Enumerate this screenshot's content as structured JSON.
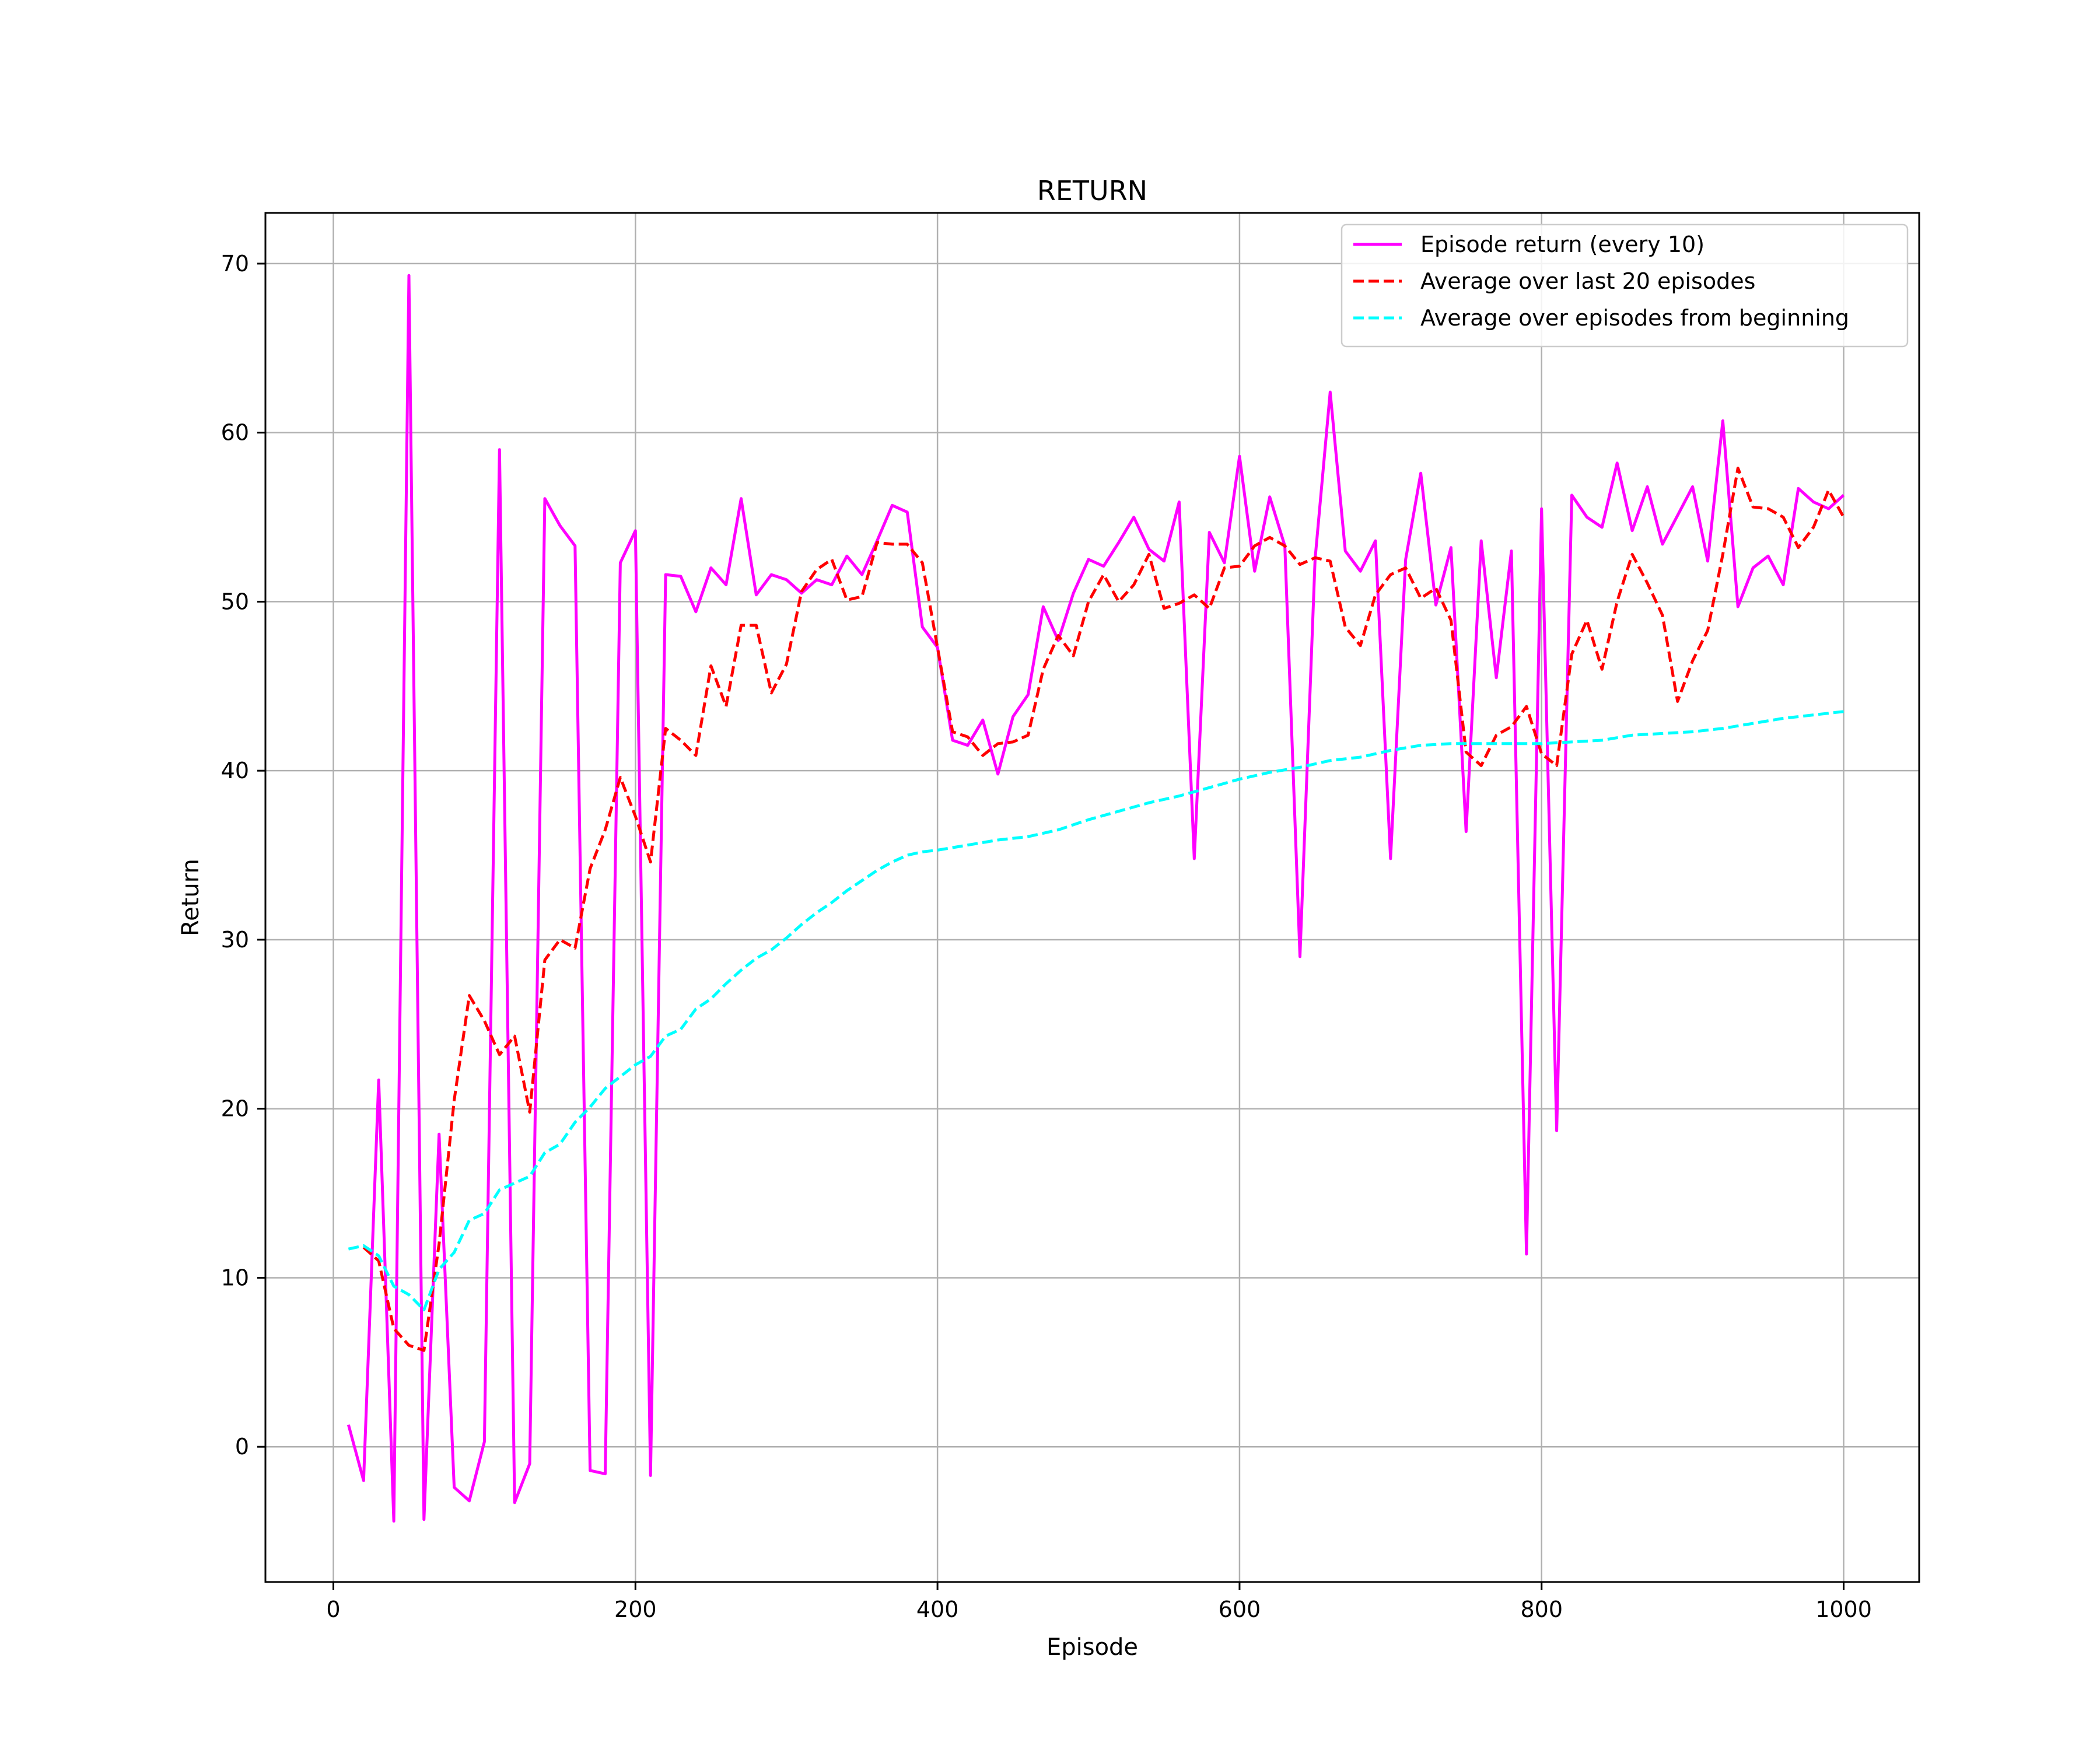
{
  "chart_data": {
    "type": "line",
    "title": "RETURN",
    "xlabel": "Episode",
    "ylabel": "Return",
    "xlim": [
      -45,
      1050
    ],
    "ylim": [
      -8,
      73
    ],
    "xticks": [
      0,
      200,
      400,
      600,
      800,
      1000
    ],
    "yticks": [
      0,
      10,
      20,
      30,
      40,
      50,
      60,
      70
    ],
    "grid": true,
    "legend_position": "top-right",
    "series": [
      {
        "name": "Episode return (every 10)",
        "color": "#ff00ff",
        "style": "solid",
        "x": [
          10,
          20,
          30,
          40,
          50,
          60,
          70,
          80,
          90,
          100,
          110,
          120,
          130,
          140,
          150,
          160,
          170,
          180,
          190,
          200,
          210,
          220,
          230,
          240,
          250,
          260,
          270,
          280,
          290,
          300,
          310,
          320,
          330,
          340,
          350,
          360,
          370,
          380,
          390,
          400,
          410,
          420,
          430,
          440,
          450,
          460,
          470,
          480,
          490,
          500,
          510,
          520,
          530,
          540,
          550,
          560,
          570,
          580,
          590,
          600,
          610,
          620,
          630,
          640,
          650,
          660,
          670,
          680,
          690,
          700,
          710,
          720,
          730,
          740,
          750,
          760,
          770,
          780,
          790,
          800,
          810,
          820,
          830,
          840,
          850,
          860,
          870,
          880,
          890,
          900,
          910,
          920,
          930,
          940,
          950,
          960,
          970,
          980,
          990,
          1000
        ],
        "y": [
          1.3,
          -2,
          21.7,
          -4.4,
          69.3,
          -4.3,
          18.5,
          -2.4,
          -3.2,
          0.3,
          59,
          -3.3,
          -1,
          56.1,
          54.5,
          53.3,
          -1.4,
          -1.6,
          52.3,
          54.2,
          -1.7,
          51.6,
          51.5,
          49.4,
          52,
          51,
          56.1,
          50.4,
          51.6,
          51.3,
          50.5,
          51.3,
          51,
          52.7,
          51.6,
          53.6,
          55.7,
          55.3,
          48.5,
          47.3,
          41.8,
          41.5,
          43,
          39.8,
          43.2,
          44.5,
          49.7,
          47.7,
          50.5,
          52.5,
          52.1,
          53.5,
          55,
          53.1,
          52.4,
          55.9,
          34.8,
          54.1,
          52.3,
          58.6,
          51.8,
          56.2,
          53.3,
          29,
          52.5,
          62.4,
          53,
          51.8,
          53.6,
          34.8,
          52.5,
          57.6,
          49.8,
          53.2,
          36.4,
          53.6,
          45.5,
          53,
          11.4,
          55.5,
          18.7,
          56.3,
          55,
          54.4,
          58.2,
          54.2,
          56.8,
          53.4,
          55.1,
          56.8,
          52.4,
          60.7,
          49.7,
          52,
          52.7,
          51,
          56.7,
          55.9,
          55.5,
          56.3
        ]
      },
      {
        "name": "Average over last 20 episodes",
        "color": "#ff0000",
        "style": "dashed",
        "x": [
          20,
          30,
          40,
          50,
          60,
          70,
          80,
          90,
          100,
          110,
          120,
          130,
          140,
          150,
          160,
          170,
          180,
          190,
          200,
          210,
          220,
          230,
          240,
          250,
          260,
          270,
          280,
          290,
          300,
          310,
          320,
          330,
          340,
          350,
          360,
          370,
          380,
          390,
          400,
          410,
          420,
          430,
          440,
          450,
          460,
          470,
          480,
          490,
          500,
          510,
          520,
          530,
          540,
          550,
          560,
          570,
          580,
          590,
          600,
          610,
          620,
          630,
          640,
          650,
          660,
          670,
          680,
          690,
          700,
          710,
          720,
          730,
          740,
          750,
          760,
          770,
          780,
          790,
          800,
          810,
          820,
          830,
          840,
          850,
          860,
          870,
          880,
          890,
          900,
          910,
          920,
          930,
          940,
          950,
          960,
          970,
          980,
          990,
          1000
        ],
        "y": [
          11.8,
          11,
          7,
          6,
          5.7,
          12,
          20.5,
          26.7,
          25.2,
          23.2,
          24.3,
          19.8,
          28.8,
          30,
          29.5,
          34.2,
          36.5,
          39.6,
          37.3,
          34.6,
          42.5,
          41.8,
          40.9,
          46.2,
          43.8,
          48.6,
          48.6,
          44.6,
          46.3,
          50.6,
          51.9,
          52.5,
          50.1,
          50.3,
          53.5,
          53.4,
          53.4,
          52.3,
          47.3,
          42.3,
          42,
          40.9,
          41.6,
          41.7,
          42.1,
          46,
          48,
          46.8,
          50,
          51.6,
          50,
          51,
          52.8,
          49.6,
          49.9,
          50.4,
          49.6,
          52,
          52.1,
          53.3,
          53.8,
          53.3,
          52.2,
          52.6,
          52.4,
          48.5,
          47.4,
          50.4,
          51.6,
          52,
          50.2,
          50.8,
          48.9,
          41.1,
          40.3,
          42.1,
          42.6,
          43.8,
          41,
          40.3,
          46.9,
          48.9,
          46,
          50,
          52.8,
          51.1,
          49.2,
          44.1,
          46.5,
          48.3,
          52.8,
          57.9,
          55.6,
          55.5,
          55,
          53.2,
          54.4,
          56.6,
          55
        ]
      },
      {
        "name": "Average over episodes from beginning",
        "color": "#00ffff",
        "style": "dashed",
        "x": [
          10,
          20,
          30,
          40,
          50,
          60,
          70,
          80,
          90,
          100,
          110,
          120,
          130,
          140,
          150,
          160,
          170,
          180,
          190,
          200,
          210,
          220,
          230,
          240,
          250,
          260,
          270,
          280,
          290,
          300,
          310,
          320,
          330,
          340,
          350,
          360,
          370,
          380,
          390,
          400,
          420,
          440,
          460,
          480,
          500,
          520,
          540,
          560,
          580,
          600,
          620,
          640,
          660,
          680,
          700,
          720,
          740,
          760,
          780,
          800,
          820,
          840,
          860,
          880,
          900,
          920,
          940,
          960,
          980,
          1000
        ],
        "y": [
          11.7,
          11.9,
          11.3,
          9.5,
          9,
          8.1,
          10.5,
          11.5,
          13.4,
          13.8,
          15.2,
          15.6,
          16,
          17.4,
          17.9,
          19.2,
          20.1,
          21.2,
          21.9,
          22.6,
          23.1,
          24.3,
          24.7,
          25.9,
          26.5,
          27.4,
          28.2,
          28.9,
          29.4,
          30.1,
          30.9,
          31.6,
          32.2,
          32.9,
          33.5,
          34.1,
          34.6,
          35,
          35.2,
          35.3,
          35.6,
          35.9,
          36.1,
          36.5,
          37.1,
          37.6,
          38.1,
          38.5,
          39,
          39.5,
          39.9,
          40.2,
          40.6,
          40.8,
          41.2,
          41.5,
          41.6,
          41.6,
          41.6,
          41.6,
          41.7,
          41.8,
          42.1,
          42.2,
          42.3,
          42.5,
          42.8,
          43.1,
          43.3,
          43.5
        ]
      }
    ]
  }
}
